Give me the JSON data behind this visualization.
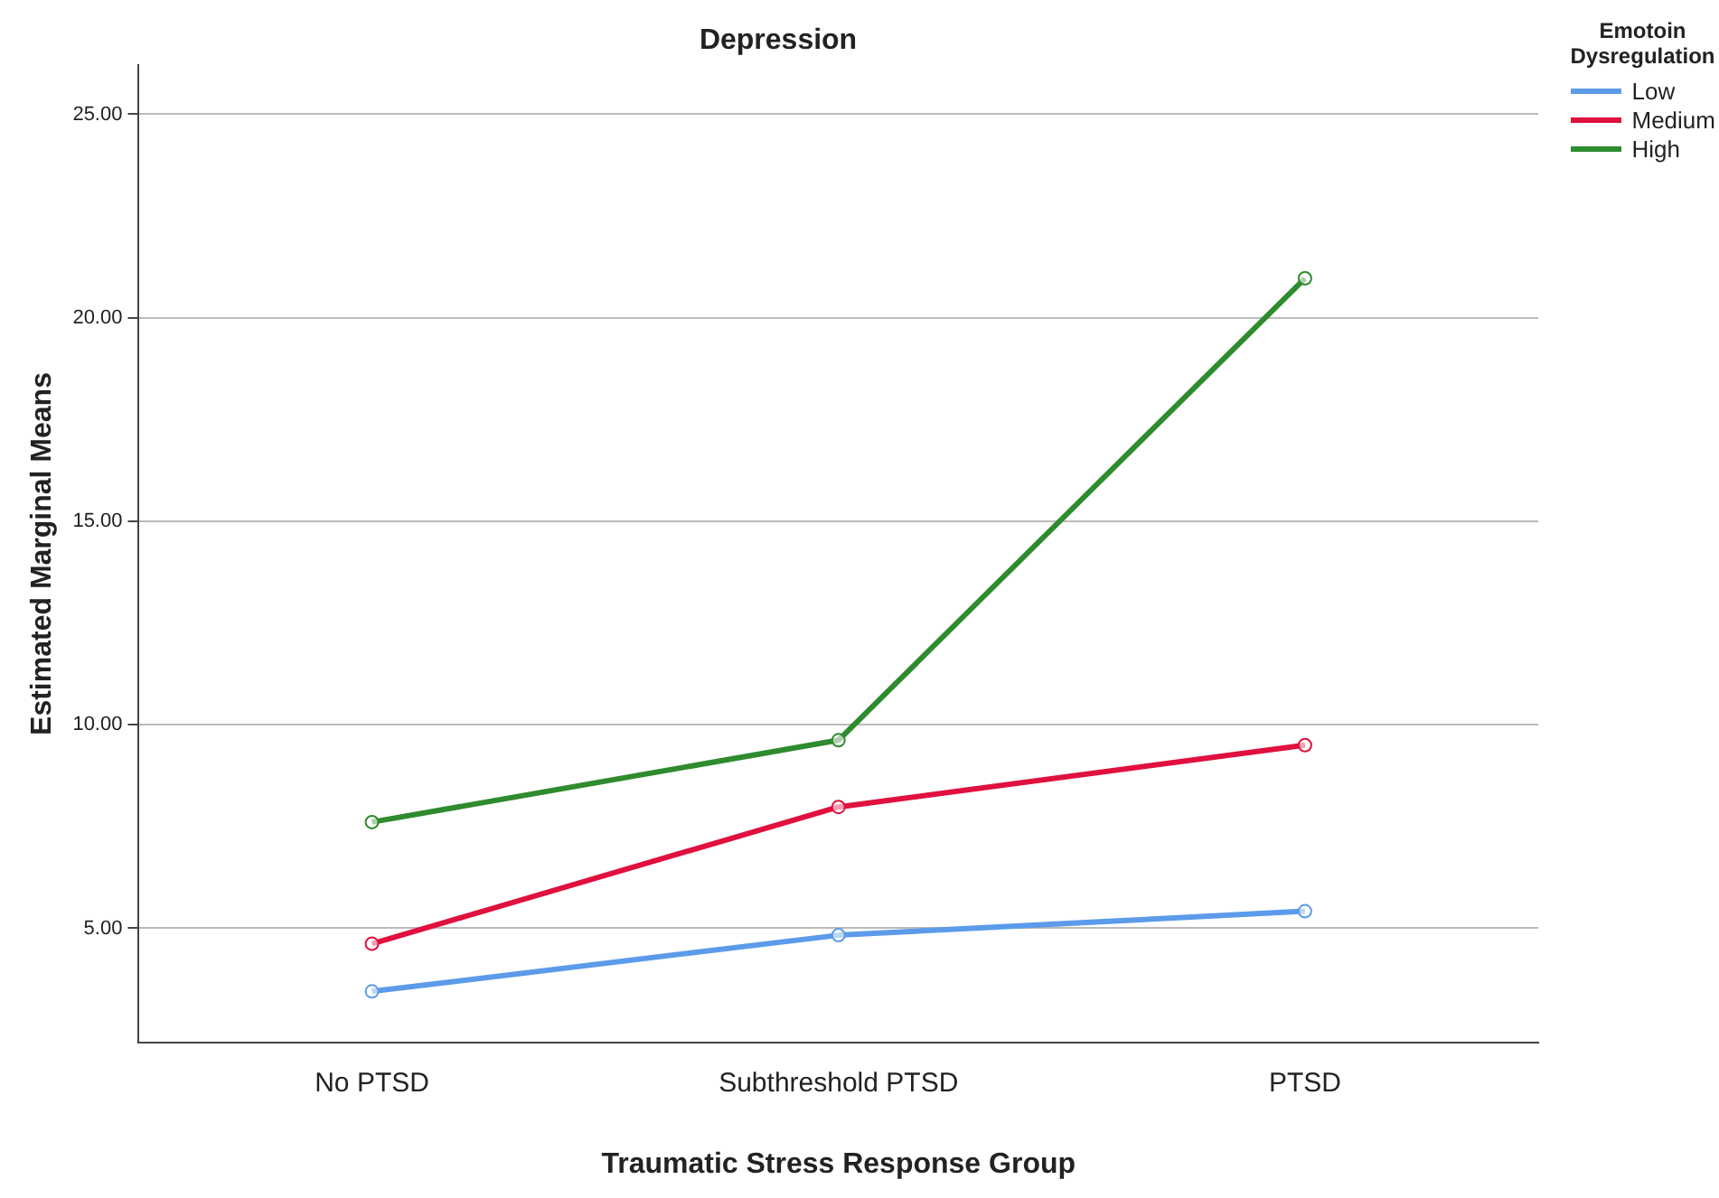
{
  "chart_data": {
    "type": "line",
    "title": "Depression",
    "xlabel": "Traumatic Stress Response Group",
    "ylabel": "Estimated Marginal Means",
    "legend_title": "Emotoin Dysregulation",
    "categories": [
      "No PTSD",
      "Subthreshold PTSD",
      "PTSD"
    ],
    "series": [
      {
        "name": "Low",
        "color": "#5b9bea",
        "values": [
          3.45,
          4.83,
          5.42
        ]
      },
      {
        "name": "Medium",
        "color": "#e0103f",
        "values": [
          4.62,
          7.98,
          9.5
        ]
      },
      {
        "name": "High",
        "color": "#2e8b2e",
        "values": [
          7.61,
          9.62,
          20.97
        ]
      }
    ],
    "ylim": [
      2.2,
      26.2
    ],
    "yticks": [
      {
        "value": 5,
        "label": "5.00"
      },
      {
        "value": 10,
        "label": "10.00"
      },
      {
        "value": 15,
        "label": "15.00"
      },
      {
        "value": 20,
        "label": "20.00"
      },
      {
        "value": 25,
        "label": "25.00"
      }
    ],
    "grid": "y",
    "legend": "top right",
    "marker": "circle",
    "line_style": "solid"
  }
}
